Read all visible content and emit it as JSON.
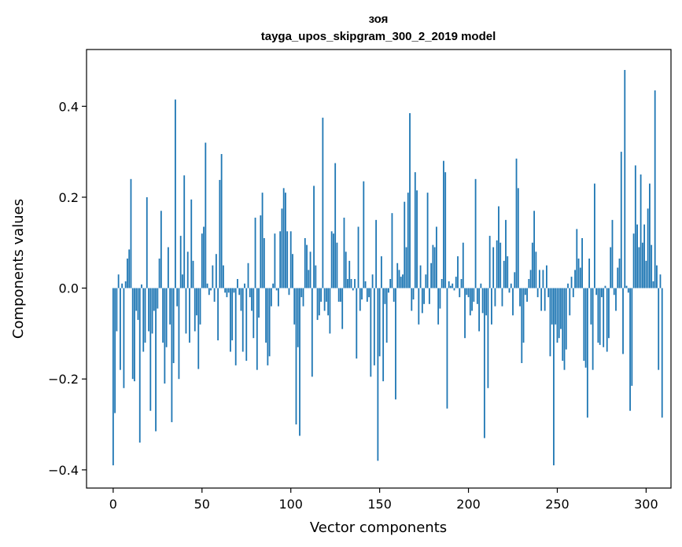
{
  "chart_data": {
    "type": "bar",
    "title": "зоя",
    "subtitle": "tayga_upos_skipgram_300_2_2019 model",
    "xlabel": "Vector components",
    "ylabel": "Components values",
    "xlim": [
      -15,
      314
    ],
    "ylim": [
      -0.44,
      0.525
    ],
    "xticks": [
      0,
      50,
      100,
      150,
      200,
      250,
      300
    ],
    "xtick_labels": [
      "0",
      "50",
      "100",
      "150",
      "200",
      "250",
      "300"
    ],
    "yticks": [
      -0.4,
      -0.2,
      0.0,
      0.2,
      0.4
    ],
    "ytick_labels": [
      "−0.4",
      "−0.2",
      "0.0",
      "0.2",
      "0.4"
    ],
    "grid": false,
    "bar_color": "#1f77b4",
    "values": [
      -0.39,
      -0.275,
      -0.095,
      0.03,
      -0.18,
      0.01,
      -0.22,
      0.015,
      0.065,
      0.085,
      0.24,
      -0.2,
      -0.205,
      -0.05,
      -0.07,
      -0.34,
      0.008,
      -0.14,
      -0.12,
      0.2,
      -0.095,
      -0.27,
      -0.1,
      -0.05,
      -0.315,
      -0.045,
      0.065,
      0.17,
      -0.12,
      -0.21,
      -0.13,
      0.09,
      -0.08,
      -0.295,
      -0.165,
      0.415,
      -0.04,
      -0.2,
      0.115,
      0.03,
      0.248,
      -0.1,
      0.08,
      -0.12,
      0.195,
      0.06,
      -0.095,
      -0.06,
      -0.178,
      -0.08,
      0.12,
      0.135,
      0.32,
      0.01,
      -0.015,
      -0.005,
      0.05,
      -0.03,
      0.075,
      -0.115,
      0.238,
      0.295,
      0.05,
      -0.01,
      -0.02,
      -0.01,
      -0.14,
      -0.115,
      -0.01,
      -0.17,
      0.02,
      -0.015,
      -0.05,
      -0.14,
      0.01,
      -0.16,
      0.055,
      -0.02,
      -0.05,
      -0.11,
      0.155,
      -0.18,
      -0.065,
      0.16,
      0.21,
      0.11,
      -0.12,
      -0.17,
      -0.15,
      -0.04,
      0.01,
      0.12,
      -0.005,
      -0.04,
      0.125,
      0.175,
      0.22,
      0.21,
      0.125,
      -0.015,
      0.125,
      0.075,
      -0.08,
      -0.3,
      -0.13,
      -0.325,
      -0.02,
      -0.04,
      0.11,
      0.095,
      0.04,
      0.08,
      -0.195,
      0.225,
      0.05,
      -0.07,
      -0.06,
      -0.03,
      0.375,
      -0.05,
      -0.03,
      -0.06,
      -0.1,
      0.125,
      0.12,
      0.275,
      0.1,
      -0.03,
      -0.03,
      -0.09,
      0.155,
      0.08,
      0.02,
      0.06,
      0.02,
      -0.005,
      0.02,
      -0.155,
      0.135,
      -0.05,
      -0.025,
      0.235,
      0.015,
      -0.03,
      -0.02,
      -0.195,
      0.03,
      -0.17,
      0.15,
      -0.38,
      -0.15,
      0.07,
      -0.205,
      -0.035,
      -0.12,
      -0.01,
      0.02,
      0.165,
      -0.03,
      -0.245,
      0.055,
      0.04,
      0.025,
      0.03,
      0.19,
      0.09,
      0.21,
      0.385,
      -0.05,
      -0.025,
      0.255,
      0.215,
      -0.08,
      0.05,
      -0.055,
      -0.035,
      0.03,
      0.21,
      -0.035,
      0.055,
      0.095,
      0.09,
      0.135,
      -0.08,
      -0.045,
      0.02,
      0.28,
      0.255,
      -0.265,
      0.015,
      0.005,
      0.01,
      -0.005,
      0.025,
      0.07,
      -0.02,
      0.02,
      0.1,
      -0.11,
      -0.015,
      -0.02,
      -0.06,
      -0.05,
      -0.03,
      0.24,
      -0.035,
      -0.095,
      0.01,
      -0.055,
      -0.33,
      -0.06,
      -0.22,
      0.115,
      -0.08,
      0.09,
      -0.04,
      0.105,
      0.18,
      0.1,
      -0.04,
      0.06,
      0.15,
      0.07,
      -0.01,
      0.01,
      -0.06,
      0.035,
      0.285,
      0.22,
      -0.04,
      -0.165,
      -0.12,
      -0.015,
      -0.03,
      0.02,
      0.04,
      0.1,
      0.17,
      0.08,
      -0.02,
      0.04,
      -0.05,
      0.04,
      -0.05,
      0.05,
      -0.02,
      -0.15,
      -0.08,
      -0.39,
      -0.08,
      -0.12,
      -0.11,
      -0.09,
      -0.16,
      -0.18,
      -0.135,
      0.01,
      -0.06,
      0.025,
      -0.02,
      0.04,
      0.13,
      0.065,
      0.045,
      0.11,
      -0.16,
      -0.175,
      -0.285,
      0.065,
      -0.08,
      -0.18,
      0.23,
      -0.015,
      -0.12,
      -0.125,
      -0.02,
      -0.13,
      0.005,
      -0.14,
      -0.11,
      0.09,
      0.15,
      -0.015,
      -0.05,
      0.045,
      0.065,
      0.3,
      -0.145,
      0.48,
      0.005,
      -0.01,
      -0.27,
      -0.215,
      0.12,
      0.27,
      0.14,
      0.09,
      0.25,
      0.1,
      0.14,
      0.06,
      0.175,
      0.23,
      0.095,
      0.015,
      0.435,
      0.05,
      -0.18,
      0.03,
      -0.285
    ]
  }
}
